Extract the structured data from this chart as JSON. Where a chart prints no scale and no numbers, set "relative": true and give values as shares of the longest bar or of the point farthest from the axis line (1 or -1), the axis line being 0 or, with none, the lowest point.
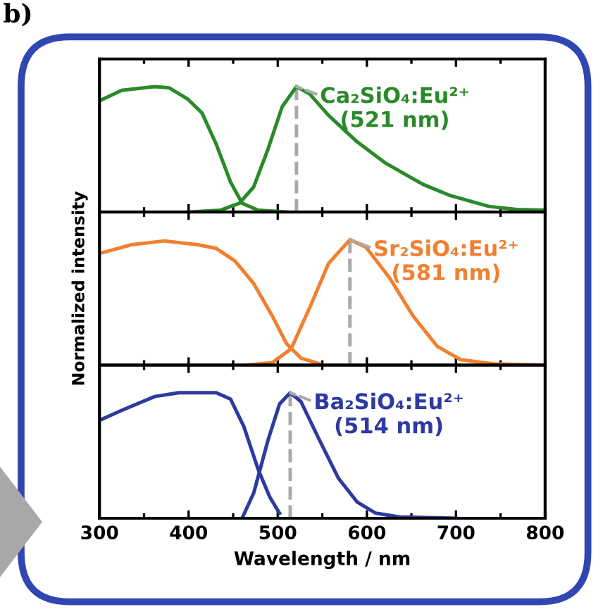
{
  "chart_data": [
    {
      "type": "line",
      "relative": true,
      "xlim": [
        300,
        800
      ],
      "xticks": [
        300,
        400,
        500,
        600,
        700,
        800
      ],
      "tick_labels": false,
      "grid": false,
      "legend": false,
      "annotations": [
        "b)",
        {
          "text": "Ca₂SiO₄:Eu²⁺\n(521 nm)",
          "x": 521,
          "y": 1
        }
      ],
      "series": [
        {
          "color": "#2a8a2a",
          "x": [
            300,
            325,
            362,
            378,
            399,
            415,
            431,
            447,
            460,
            478,
            510
          ],
          "values": [
            0.887,
            0.97,
            1.0,
            0.99,
            0.9,
            0.79,
            0.54,
            0.24,
            0.07,
            0.015,
            0
          ]
        },
        {
          "color": "#aaaaaa",
          "line_style": "dashed",
          "x": [
            521,
            521
          ],
          "values": [
            0,
            1
          ]
        },
        {
          "color": "#2a8a2a",
          "x": [
            399,
            436,
            457,
            473,
            489,
            505,
            521,
            536,
            557,
            589,
            621,
            663,
            694,
            737,
            768,
            800
          ],
          "values": [
            0,
            0.015,
            0.07,
            0.2,
            0.5,
            0.84,
            1.0,
            0.94,
            0.77,
            0.56,
            0.39,
            0.22,
            0.13,
            0.045,
            0.02,
            0.015
          ]
        }
      ]
    },
    {
      "type": "line",
      "relative": true,
      "xlim": [
        300,
        800
      ],
      "xticks": [
        300,
        400,
        500,
        600,
        700,
        800
      ],
      "tick_labels": false,
      "grid": false,
      "legend": false,
      "ylabel": "Normalized intensity",
      "annotations": [
        {
          "text": "Sr₂SiO₄:Eu²⁺\n(581 nm)",
          "x": 581,
          "y": 1
        }
      ],
      "series": [
        {
          "color": "#f08030",
          "x": [
            300,
            336,
            373,
            410,
            431,
            452,
            473,
            494,
            510,
            526,
            547
          ],
          "values": [
            0.89,
            0.96,
            0.99,
            0.96,
            0.93,
            0.83,
            0.65,
            0.39,
            0.17,
            0.056,
            0.01
          ]
        },
        {
          "color": "#aaaaaa",
          "line_style": "dashed",
          "x": [
            581,
            581
          ],
          "values": [
            0,
            1
          ]
        },
        {
          "color": "#f08030",
          "x": [
            465,
            494,
            515,
            536,
            557,
            581,
            599,
            626,
            652,
            679,
            705,
            742,
            800
          ],
          "values": [
            0,
            0.02,
            0.13,
            0.46,
            0.81,
            1.0,
            0.94,
            0.69,
            0.39,
            0.15,
            0.044,
            0.01,
            0
          ]
        }
      ]
    },
    {
      "type": "line",
      "relative": true,
      "xlim": [
        300,
        800
      ],
      "xticks": [
        300,
        400,
        500,
        600,
        700,
        800
      ],
      "tick_labels": "x",
      "grid": false,
      "legend": false,
      "xlabel": "Wavelength / nm",
      "annotations": [
        {
          "text": "Ba₂SiO₄:Eu²⁺\n(514 nm)",
          "x": 514,
          "y": 1
        }
      ],
      "series": [
        {
          "color": "#2e3aa0",
          "x": [
            300,
            325,
            362,
            389,
            431,
            447,
            462,
            478,
            491,
            502
          ],
          "values": [
            0.78,
            0.86,
            0.97,
            1.0,
            1.0,
            0.95,
            0.73,
            0.39,
            0.17,
            0.04
          ]
        },
        {
          "color": "#aaaaaa",
          "line_style": "dashed",
          "x": [
            514,
            514
          ],
          "values": [
            0,
            1
          ]
        },
        {
          "color": "#2e3aa0",
          "x": [
            460,
            473,
            489,
            502,
            514,
            526,
            547,
            568,
            589,
            610,
            637,
            700
          ],
          "values": [
            0,
            0.2,
            0.62,
            0.91,
            1.0,
            0.93,
            0.62,
            0.32,
            0.13,
            0.04,
            0.01,
            0
          ]
        }
      ]
    }
  ]
}
